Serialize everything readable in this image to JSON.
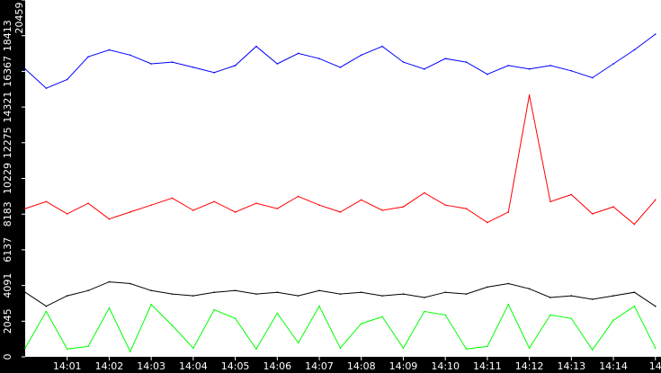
{
  "chart_data": {
    "type": "line",
    "title": "",
    "xlabel": "",
    "ylabel": "",
    "ylim": [
      0,
      20459
    ],
    "xlim": [
      "14:00:00",
      "14:15:08"
    ],
    "grid": false,
    "background": "#ffffff",
    "y_ticks": [
      "0",
      "2045",
      "4091",
      "6137",
      "8183",
      "10229",
      "12275",
      "14321",
      "16367",
      "18413",
      "20459"
    ],
    "x_ticks": [
      "14:01",
      "14:02",
      "14:03",
      "14:04",
      "14:05",
      "14:06",
      "14:07",
      "14:08",
      "14:09",
      "14:10",
      "14:11",
      "14:12",
      "14:13",
      "14:14",
      "14"
    ],
    "x": [
      "14:00:00",
      "14:00:30",
      "14:01:00",
      "14:01:30",
      "14:02:00",
      "14:02:30",
      "14:03:00",
      "14:03:30",
      "14:04:00",
      "14:04:30",
      "14:05:00",
      "14:05:30",
      "14:06:00",
      "14:06:30",
      "14:07:00",
      "14:07:30",
      "14:08:00",
      "14:08:30",
      "14:09:00",
      "14:09:30",
      "14:10:00",
      "14:10:30",
      "14:11:00",
      "14:11:30",
      "14:12:00",
      "14:12:30",
      "14:13:00",
      "14:13:30",
      "14:14:00",
      "14:14:30",
      "14:15:00"
    ],
    "series": [
      {
        "color": "#0000ff",
        "values": [
          16500,
          15400,
          15900,
          17200,
          17600,
          17300,
          16800,
          16900,
          16600,
          16300,
          16700,
          17800,
          16800,
          17400,
          17100,
          16600,
          17300,
          17800,
          16900,
          16500,
          17100,
          16900,
          16200,
          16700,
          16500,
          16700,
          16400,
          16000,
          16800,
          17600,
          18500
        ]
      },
      {
        "color": "#ff0000",
        "values": [
          8500,
          8900,
          8200,
          8800,
          7900,
          8300,
          8700,
          9100,
          8400,
          8900,
          8300,
          8800,
          8500,
          9200,
          8700,
          8300,
          9000,
          8400,
          8600,
          9400,
          8700,
          8500,
          7700,
          8300,
          15000,
          8900,
          9300,
          8200,
          8600,
          7600,
          9000
        ]
      },
      {
        "color": "#000000",
        "values": [
          3700,
          2900,
          3500,
          3800,
          4300,
          4200,
          3800,
          3600,
          3500,
          3700,
          3800,
          3600,
          3700,
          3500,
          3800,
          3600,
          3700,
          3500,
          3600,
          3400,
          3700,
          3600,
          4000,
          4200,
          3900,
          3400,
          3500,
          3300,
          3500,
          3700,
          2900
        ]
      },
      {
        "color": "#00ff00",
        "values": [
          500,
          2600,
          450,
          600,
          2800,
          300,
          3000,
          1800,
          500,
          2700,
          2200,
          450,
          2500,
          800,
          2900,
          500,
          1900,
          2300,
          500,
          2600,
          2400,
          450,
          600,
          3000,
          500,
          2400,
          2200,
          400,
          2100,
          2900,
          500
        ]
      }
    ]
  }
}
